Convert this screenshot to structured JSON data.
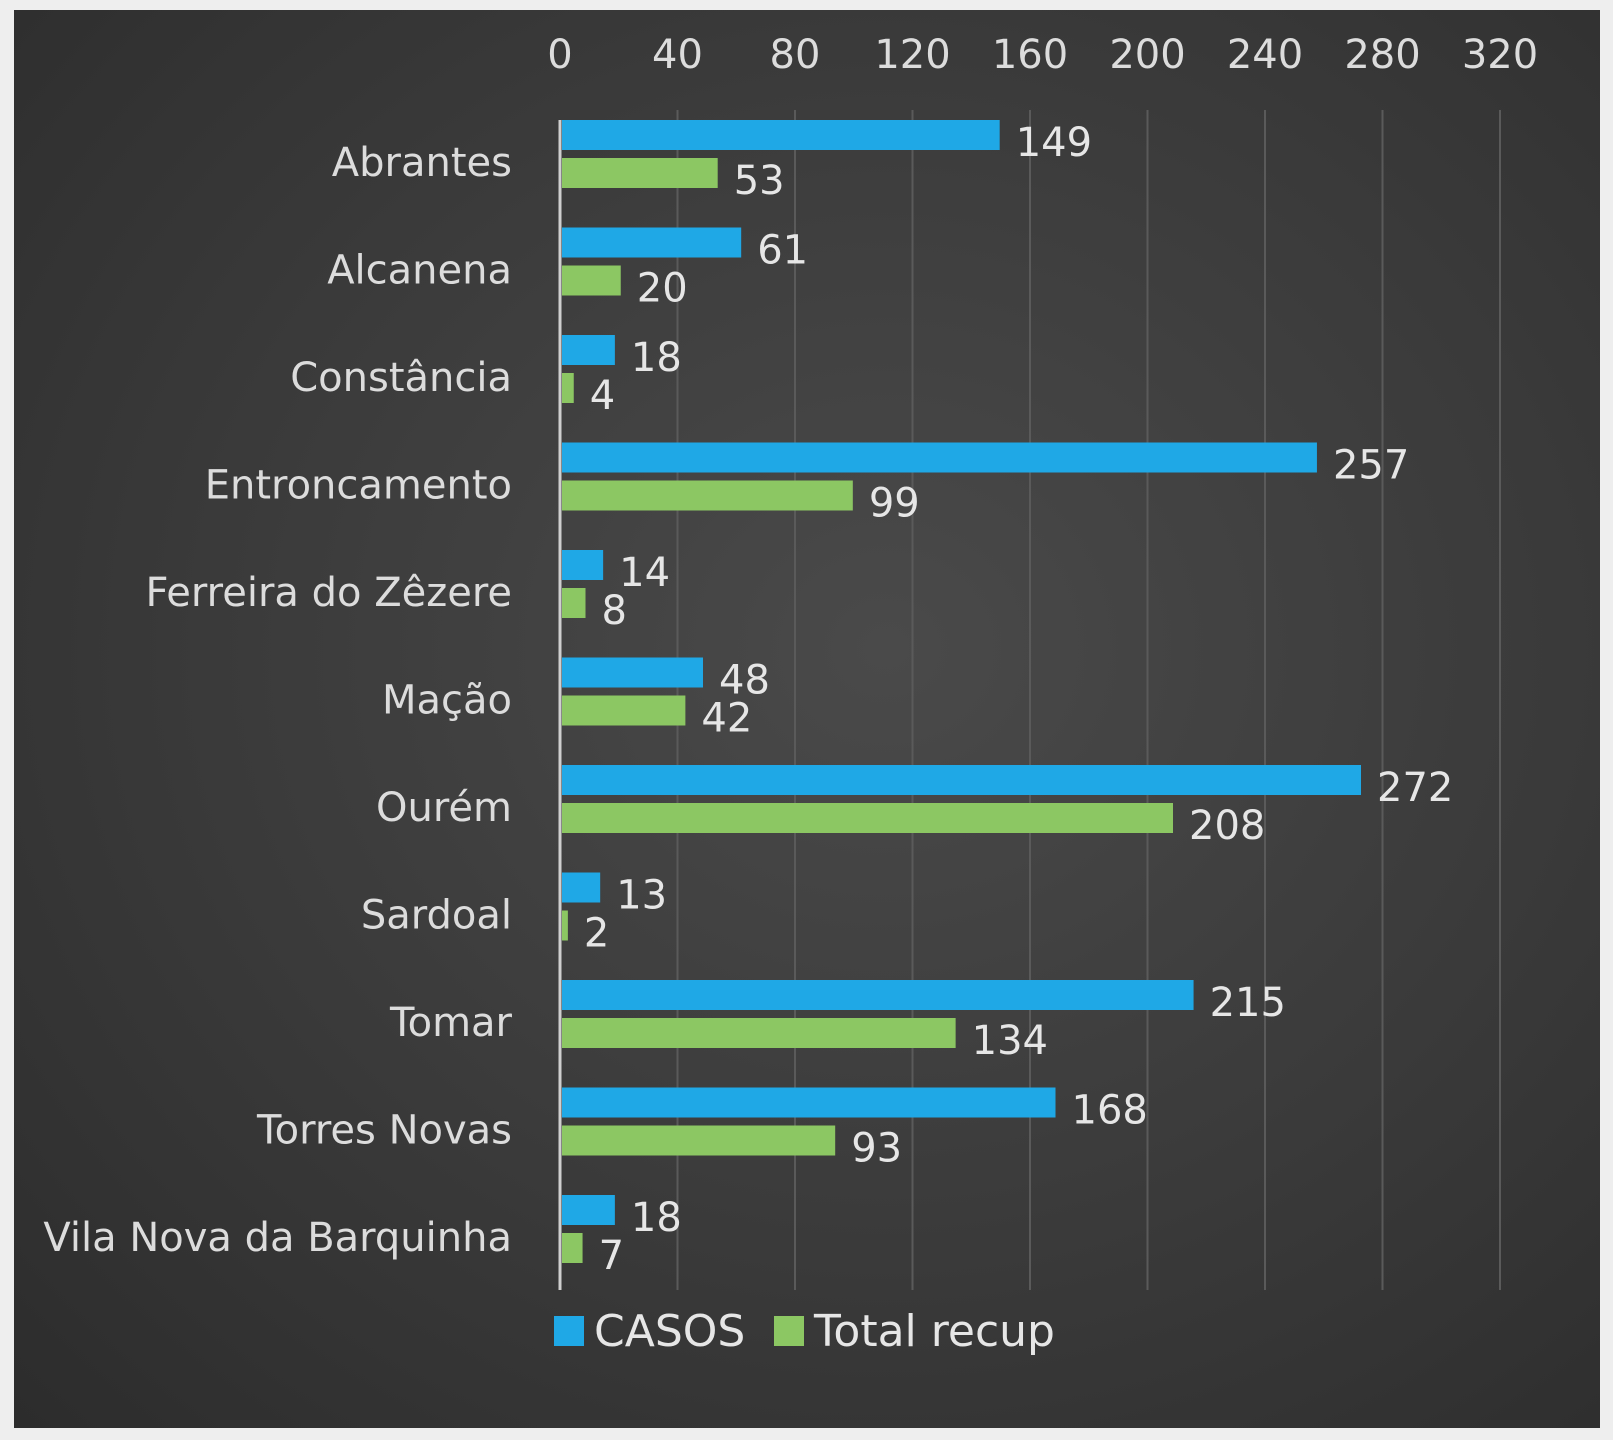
{
  "chart_data": {
    "type": "bar",
    "orientation": "horizontal",
    "categories": [
      "Abrantes",
      "Alcanena",
      "Constância",
      "Entroncamento",
      "Ferreira do Zêzere",
      "Mação",
      "Ourém",
      "Sardoal",
      "Tomar",
      "Torres Novas",
      "Vila Nova da Barquinha"
    ],
    "series": [
      {
        "name": "CASOS",
        "color": "#1fa8e6",
        "values": [
          149,
          61,
          18,
          257,
          14,
          48,
          272,
          13,
          215,
          168,
          18
        ]
      },
      {
        "name": "Total recup",
        "color": "#8cc763",
        "values": [
          53,
          20,
          4,
          99,
          8,
          42,
          208,
          2,
          134,
          93,
          7
        ]
      }
    ],
    "xlim": [
      0,
      320
    ],
    "xticks": [
      "0",
      "40",
      "80",
      "120",
      "160",
      "200",
      "240",
      "280",
      "320"
    ],
    "x_axis_position": "top",
    "grid": true,
    "data_labels": true,
    "legend_position": "bottom",
    "background_color": "#3a3a3a",
    "text_color": "#dcdcdc"
  }
}
